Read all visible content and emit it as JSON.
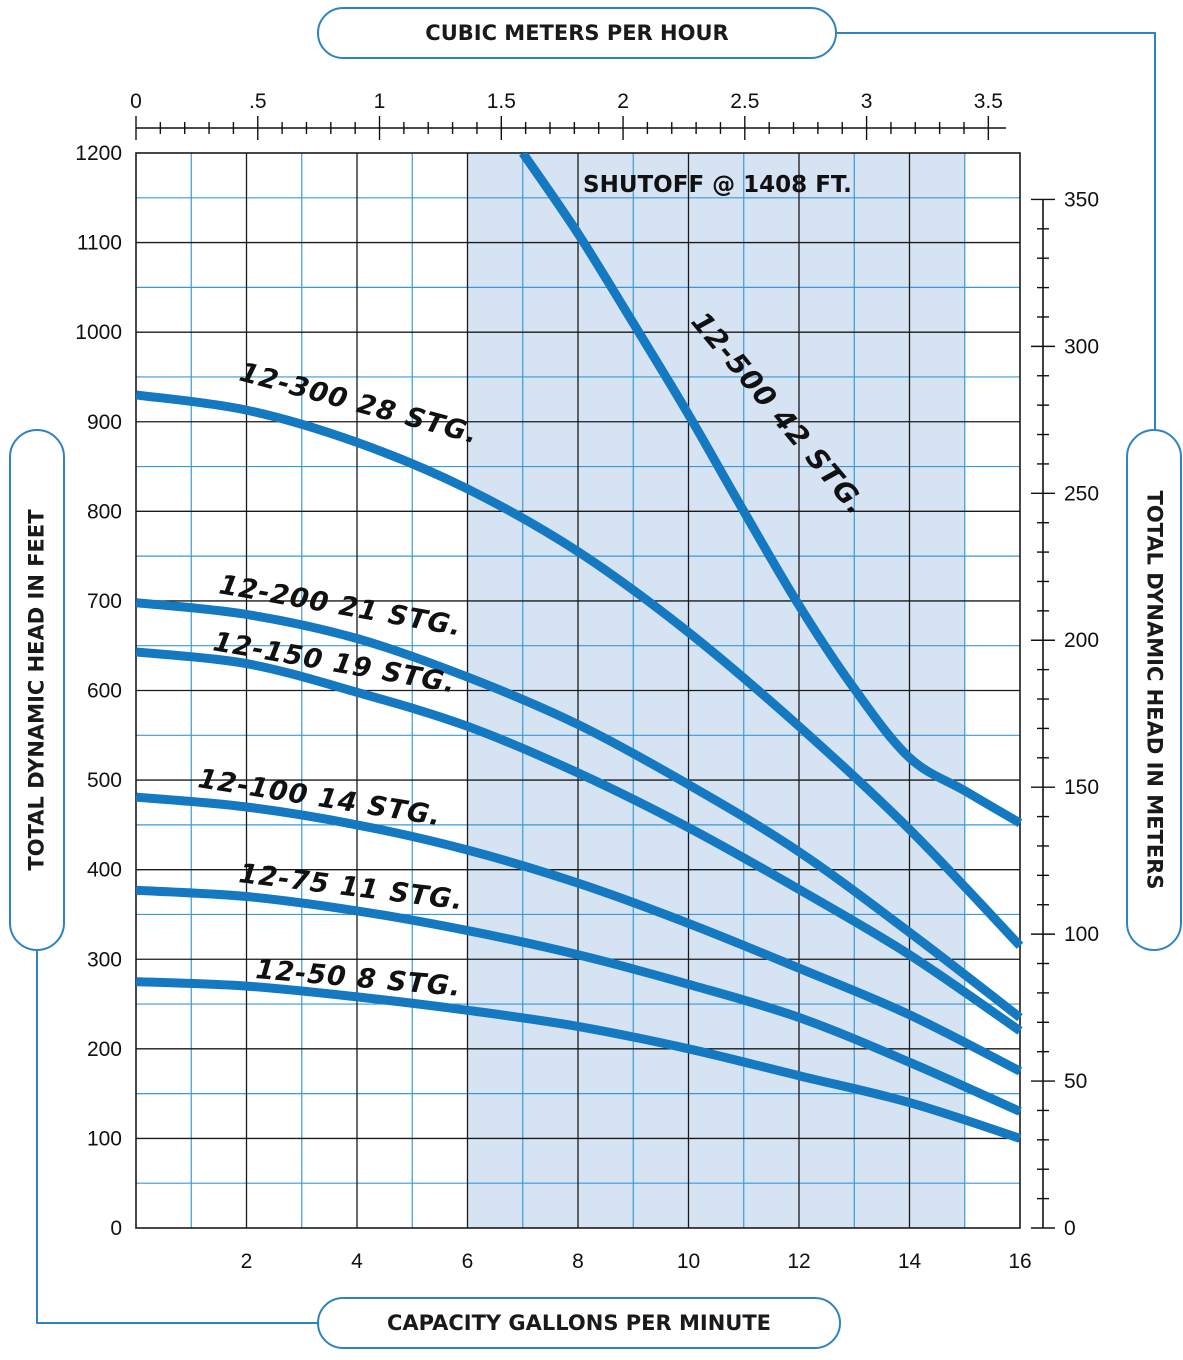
{
  "chart_data": {
    "type": "line",
    "title": "",
    "xlabel": "CAPACITY GALLONS PER MINUTE",
    "ylabel": "TOTAL DYNAMIC HEAD IN FEET",
    "x2label": "CUBIC METERS PER HOUR",
    "y2label": "TOTAL DYNAMIC HEAD IN METERS",
    "xlim": [
      0,
      16
    ],
    "ylim": [
      0,
      1200
    ],
    "x2lim": [
      0,
      3.63
    ],
    "y2lim": [
      0,
      365.8
    ],
    "x_ticks": [
      "2",
      "4",
      "6",
      "8",
      "10",
      "12",
      "14",
      "16"
    ],
    "y_ticks": [
      "0",
      "100",
      "200",
      "300",
      "400",
      "500",
      "600",
      "700",
      "800",
      "900",
      "1000",
      "1100",
      "1200"
    ],
    "x2_ticks": [
      {
        "value": 0,
        "label": "0"
      },
      {
        "value": 0.5,
        "label": ".5"
      },
      {
        "value": 1,
        "label": "1"
      },
      {
        "value": 1.5,
        "label": "1.5"
      },
      {
        "value": 2,
        "label": "2"
      },
      {
        "value": 2.5,
        "label": "2.5"
      },
      {
        "value": 3,
        "label": "3"
      },
      {
        "value": 3.5,
        "label": "3.5"
      }
    ],
    "y2_ticks": [
      {
        "value": 0,
        "label": "0"
      },
      {
        "value": 50,
        "label": "50"
      },
      {
        "value": 100,
        "label": "100"
      },
      {
        "value": 150,
        "label": "150"
      },
      {
        "value": 200,
        "label": "200"
      },
      {
        "value": 250,
        "label": "250"
      },
      {
        "value": 300,
        "label": "300"
      },
      {
        "value": 350,
        "label": "350"
      }
    ],
    "grid": true,
    "recommended_range_gpm": [
      6,
      15
    ],
    "colors": {
      "curve": "#1479c0",
      "grid_major": "#1a1a1a",
      "grid_minor": "#3a9ad6",
      "band": "#d6e3f3",
      "pill_border": "#2f84bf"
    },
    "annotations": [
      "SHUTOFF @ 1408 FT."
    ],
    "series": [
      {
        "name": "12-50  8 STG.",
        "x": [
          0,
          2,
          4,
          6,
          8,
          10,
          12,
          14,
          16
        ],
        "y": [
          275,
          270,
          258,
          243,
          225,
          200,
          170,
          140,
          100
        ]
      },
      {
        "name": "12-75  11 STG.",
        "x": [
          0,
          2,
          4,
          6,
          8,
          10,
          12,
          14,
          16
        ],
        "y": [
          377,
          370,
          354,
          332,
          305,
          272,
          235,
          185,
          130
        ]
      },
      {
        "name": "12-100  14 STG.",
        "x": [
          0,
          2,
          4,
          6,
          8,
          10,
          12,
          14,
          16
        ],
        "y": [
          481,
          470,
          450,
          422,
          385,
          340,
          290,
          238,
          175
        ]
      },
      {
        "name": "12-150  19 STG.",
        "x": [
          0,
          2,
          4,
          6,
          8,
          10,
          12,
          14,
          16
        ],
        "y": [
          643,
          630,
          598,
          560,
          508,
          447,
          378,
          305,
          220
        ]
      },
      {
        "name": "12-200  21 STG.",
        "x": [
          0,
          2,
          4,
          6,
          8,
          10,
          12,
          14,
          16
        ],
        "y": [
          698,
          685,
          658,
          615,
          562,
          495,
          420,
          330,
          235
        ]
      },
      {
        "name": "12-300  28 STG.",
        "x": [
          0,
          2,
          4,
          6,
          8,
          10,
          12,
          14,
          16
        ],
        "y": [
          930,
          913,
          877,
          825,
          755,
          665,
          560,
          445,
          315
        ]
      },
      {
        "name": "12-500  42 STG.",
        "x": [
          7,
          8,
          9,
          10,
          11,
          12,
          13,
          14,
          15,
          16
        ],
        "y": [
          1200,
          1110,
          1010,
          908,
          800,
          695,
          602,
          525,
          488,
          452
        ]
      }
    ]
  }
}
